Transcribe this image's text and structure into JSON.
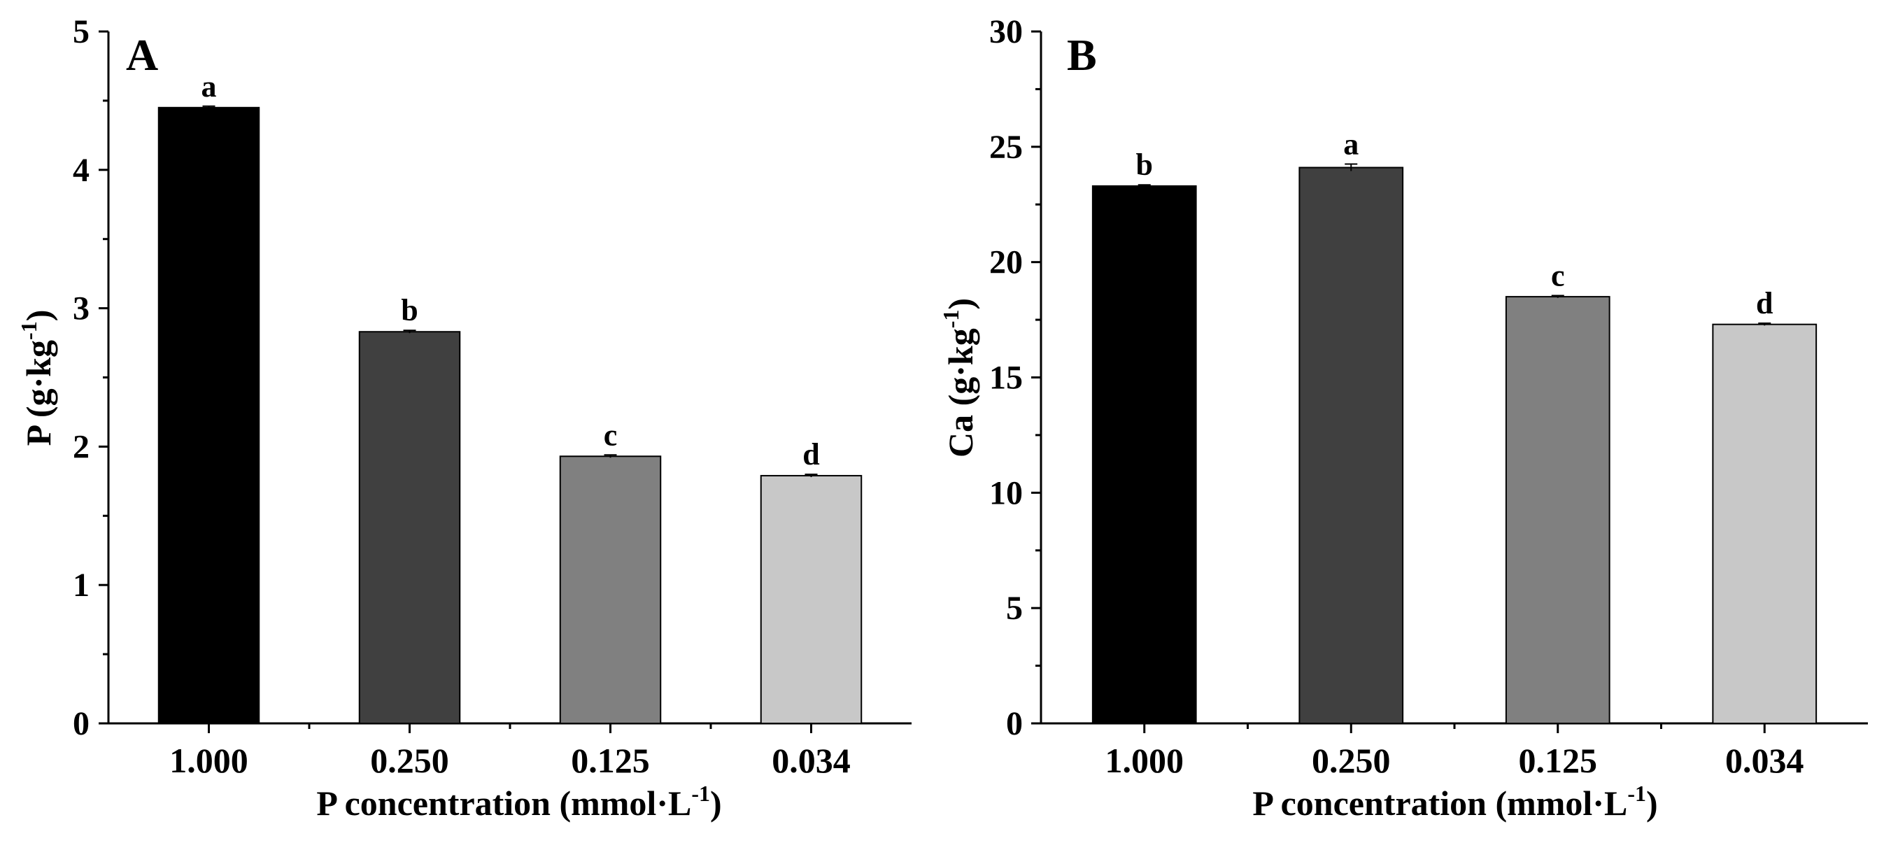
{
  "chart_data": [
    {
      "type": "bar",
      "panel": "A",
      "categories": [
        "1.000",
        "0.250",
        "0.125",
        "0.034"
      ],
      "values": [
        4.45,
        2.83,
        1.93,
        1.79
      ],
      "errors": [
        0.01,
        0.01,
        0.01,
        0.01
      ],
      "significance": [
        "a",
        "b",
        "c",
        "d"
      ],
      "ylim": [
        0,
        5
      ],
      "yticks": [
        0,
        1,
        2,
        3,
        4,
        5
      ],
      "ylabel_main": "P (g·kg",
      "ylabel_sup": "-1",
      "ylabel_end": ")",
      "xlabel_main": "P concentration (mmol·L",
      "xlabel_sup": "-1",
      "xlabel_end": ")",
      "bar_colors": [
        "#000000",
        "#404040",
        "#808080",
        "#c8c8c8"
      ]
    },
    {
      "type": "bar",
      "panel": "B",
      "categories": [
        "1.000",
        "0.250",
        "0.125",
        "0.034"
      ],
      "values": [
        23.3,
        24.1,
        18.5,
        17.3
      ],
      "errors": [
        0.05,
        0.15,
        0.05,
        0.05
      ],
      "significance": [
        "b",
        "a",
        "c",
        "d"
      ],
      "ylim": [
        0,
        30
      ],
      "yticks": [
        0,
        5,
        10,
        15,
        20,
        25,
        30
      ],
      "ylabel_main": "Ca (g·kg",
      "ylabel_sup": "-1",
      "ylabel_end": ")",
      "xlabel_main": "P concentration (mmol·L",
      "xlabel_sup": "-1",
      "xlabel_end": ")",
      "bar_colors": [
        "#000000",
        "#404040",
        "#808080",
        "#c8c8c8"
      ]
    }
  ]
}
